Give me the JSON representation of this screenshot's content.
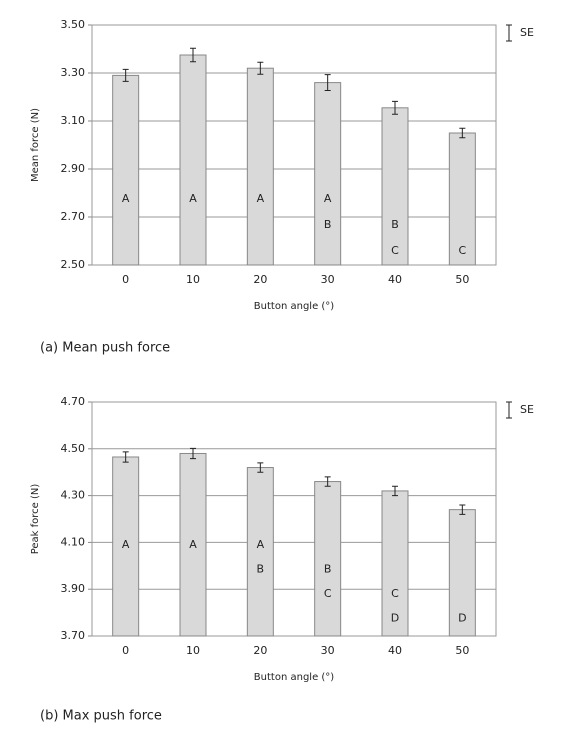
{
  "chart_data": [
    {
      "type": "bar",
      "categories": [
        "0",
        "10",
        "20",
        "30",
        "40",
        "50"
      ],
      "values": [
        3.29,
        3.375,
        3.32,
        3.26,
        3.155,
        3.05
      ],
      "errors": [
        0.025,
        0.028,
        0.025,
        0.033,
        0.027,
        0.02
      ],
      "letters": [
        [
          "A"
        ],
        [
          "A"
        ],
        [
          "A"
        ],
        [
          "A",
          "B"
        ],
        [
          "B",
          "C"
        ],
        [
          "C"
        ]
      ],
      "color": "#d9d9d9",
      "ylim": [
        2.5,
        3.5
      ],
      "yticks": [
        {
          "value": 2.5,
          "label": "2.50"
        },
        {
          "value": 2.7,
          "label": "2.70"
        },
        {
          "value": 2.9,
          "label": "2.90"
        },
        {
          "value": 3.1,
          "label": "3.10"
        },
        {
          "value": 3.3,
          "label": "3.30"
        },
        {
          "value": 3.5,
          "label": "3.50"
        }
      ],
      "grid": true,
      "xlabel": "Button angle (°)",
      "ylabel": "Mean force (N)",
      "legend": "SE",
      "caption": "(a) Mean push force"
    },
    {
      "type": "bar",
      "categories": [
        "0",
        "10",
        "20",
        "30",
        "40",
        "50"
      ],
      "values": [
        4.465,
        4.48,
        4.42,
        4.36,
        4.32,
        4.24
      ],
      "errors": [
        0.022,
        0.022,
        0.02,
        0.02,
        0.02,
        0.02
      ],
      "letters": [
        [
          "A"
        ],
        [
          "A"
        ],
        [
          "A",
          "B"
        ],
        [
          "B",
          "C"
        ],
        [
          "C",
          "D"
        ],
        [
          "D"
        ]
      ],
      "color": "#d9d9d9",
      "ylim": [
        3.7,
        4.7
      ],
      "yticks": [
        {
          "value": 3.7,
          "label": "3.70"
        },
        {
          "value": 3.9,
          "label": "3.90"
        },
        {
          "value": 4.1,
          "label": "4.10"
        },
        {
          "value": 4.3,
          "label": "4.30"
        },
        {
          "value": 4.5,
          "label": "4.50"
        },
        {
          "value": 4.7,
          "label": "4.70"
        }
      ],
      "grid": true,
      "xlabel": "Button angle (°)",
      "ylabel": "Peak force (N)",
      "legend": "SE",
      "caption": "(b) Max push force"
    }
  ]
}
